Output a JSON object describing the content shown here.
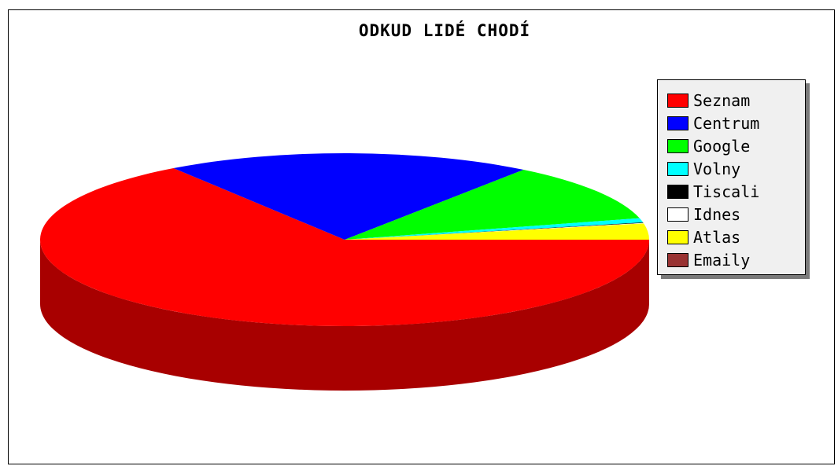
{
  "chart_data": {
    "type": "pie",
    "title": "ODKUD LIDÉ CHODÍ",
    "categories": [
      "Seznam",
      "Centrum",
      "Google",
      "Volny",
      "Tiscali",
      "Idnes",
      "Atlas",
      "Emaily"
    ],
    "values": [
      65.5,
      19.5,
      11.0,
      0.8,
      0.1,
      0.1,
      3.0,
      0.0
    ],
    "colors": [
      "#ff0000",
      "#0000ff",
      "#00ff00",
      "#00ffff",
      "#000000",
      "#ffffff",
      "#ffff00",
      "#993333"
    ],
    "legend_position": "right",
    "style": "3d"
  }
}
